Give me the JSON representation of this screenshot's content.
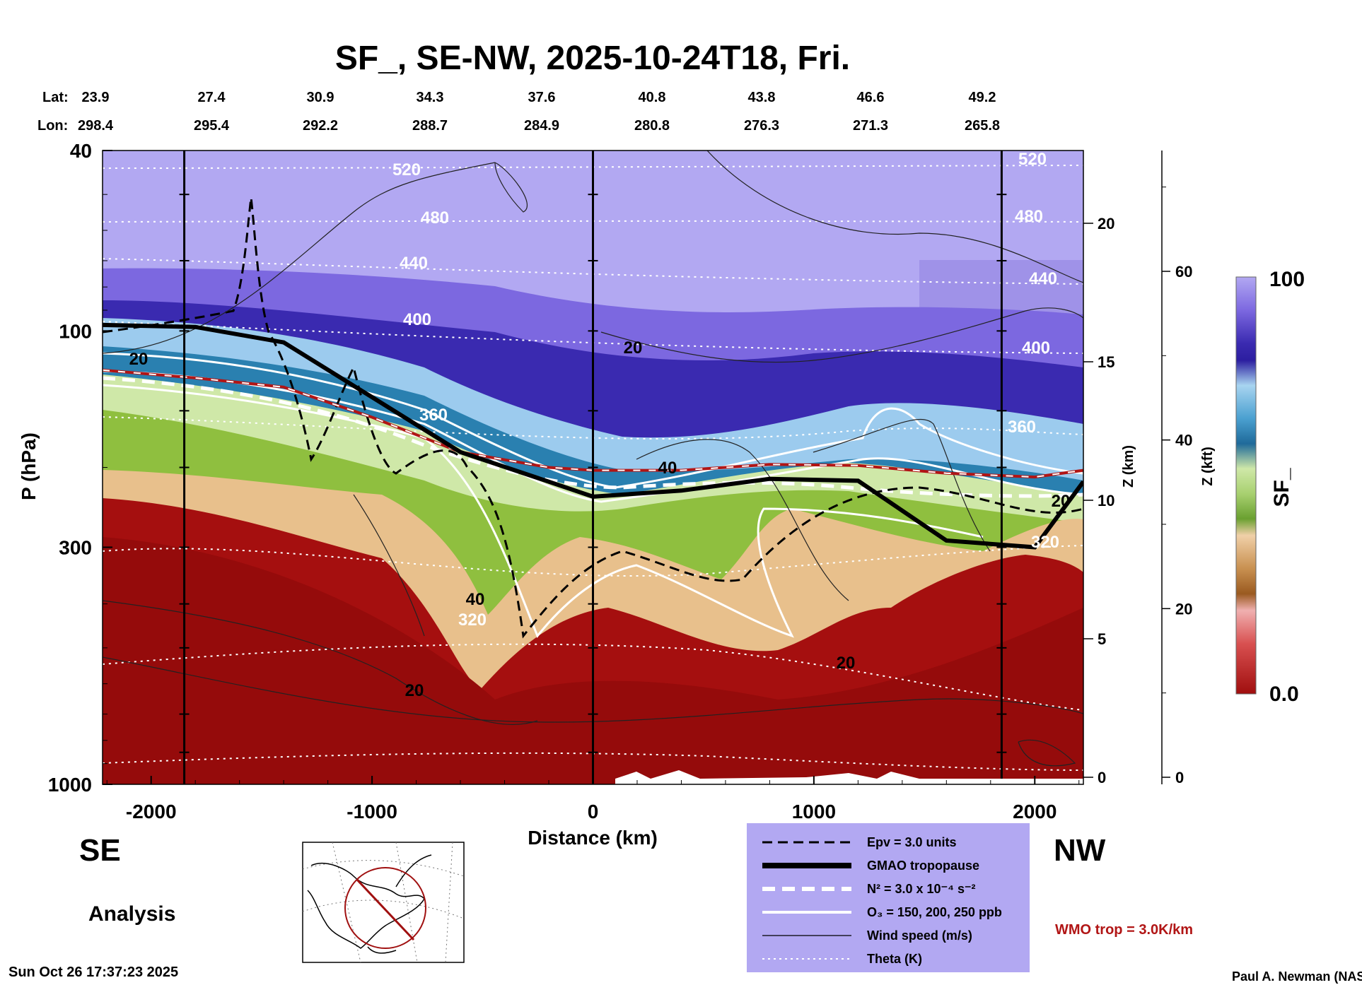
{
  "chart_data": {
    "type": "heatmap",
    "title": "SF_, SE-NW, 2025-10-24T18, Fri.",
    "xlabel": "Distance (km)",
    "ylabel": "P (hPa)",
    "y2label": "Z (km)",
    "y3label": "Z (kft)",
    "colorbar_label": "SF_",
    "colorbar_max_label": "100",
    "colorbar_min_label": "0.0",
    "xlim": [
      -2220,
      2220
    ],
    "ylim": [
      1000,
      40
    ],
    "y_scale": "log",
    "x_ticks": [
      -2000,
      -1000,
      0,
      1000,
      2000
    ],
    "y_ticks": [
      1000,
      300,
      100,
      40
    ],
    "z_km_ticks": [
      0,
      5,
      10,
      15,
      20
    ],
    "z_kft_ticks": [
      0,
      20,
      40,
      60
    ],
    "lat_label": "Lat:",
    "lon_label": "Lon:",
    "lat": [
      "23.9",
      "27.4",
      "30.9",
      "34.3",
      "37.6",
      "40.8",
      "43.8",
      "46.6",
      "49.2"
    ],
    "lon": [
      "298.4",
      "295.4",
      "292.2",
      "288.7",
      "284.9",
      "280.8",
      "276.3",
      "271.3",
      "265.8"
    ],
    "vertical_marker_lines_km": [
      -1850,
      0,
      1850
    ],
    "theta_labels_left": [
      "520",
      "480",
      "440",
      "400",
      "360",
      "320"
    ],
    "theta_labels_right": [
      "520",
      "480",
      "440",
      "400",
      "360",
      "320"
    ],
    "wind_labels": [
      "20",
      "20",
      "40",
      "40",
      "20",
      "20",
      "20"
    ],
    "tropopause_p_hpa": {
      "x": [
        -2220,
        -1800,
        -1400,
        -1000,
        -600,
        -200,
        0,
        400,
        800,
        1200,
        1600,
        2000,
        2220
      ],
      "p": [
        97,
        98,
        106,
        140,
        185,
        215,
        232,
        225,
        212,
        214,
        290,
        300,
        215
      ]
    },
    "wmo_trop_p_hpa": {
      "x": [
        -2220,
        -1800,
        -1400,
        -1000,
        -600,
        -200,
        0,
        400,
        800,
        1200,
        1600,
        2000,
        2220
      ],
      "p": [
        122,
        127,
        133,
        155,
        185,
        200,
        203,
        203,
        197,
        198,
        206,
        210,
        203
      ]
    },
    "legend": [
      {
        "style": "dashed-black",
        "label": "Epv = 3.0 units"
      },
      {
        "style": "thick-black",
        "label": "GMAO tropopause"
      },
      {
        "style": "dashed-white",
        "label": "N² = 3.0 x 10⁻⁴ s⁻²"
      },
      {
        "style": "solid-white",
        "label": "O₃ = 150, 200, 250 ppb"
      },
      {
        "style": "thin-black",
        "label": "Wind speed (m/s)"
      },
      {
        "style": "dotted-white",
        "label": "Theta (K)"
      }
    ],
    "wmo_label": "WMO trop = 3.0K/km"
  },
  "labels": {
    "se": "SE",
    "nw": "NW",
    "analysis": "Analysis",
    "timestamp": "Sun Oct 26 17:37:23 2025",
    "credit": "Paul A. Newman (NASA"
  },
  "colors": {
    "surface_red": "#a50f0f",
    "green": "#8fbf3f",
    "blue": "#2a80b0",
    "indigo": "#3a2ab0",
    "lavender": "#b2a8f2",
    "wmo_red": "#b11515",
    "legend_bg": "#b2a8f2"
  }
}
